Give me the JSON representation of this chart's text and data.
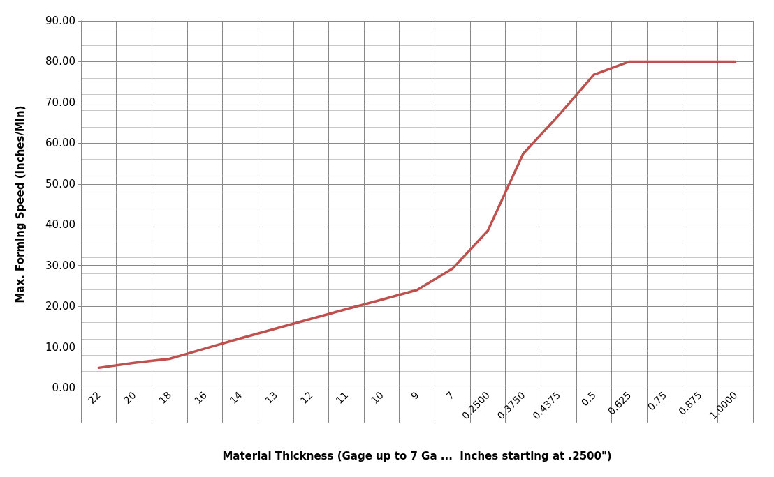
{
  "chart_data": {
    "type": "line",
    "xlabel": "Material Thickness (Gage up to 7 Ga ...  Inches starting at .2500\")",
    "ylabel": "Max. Forming Speed (Inches/Min)",
    "categories": [
      "22",
      "20",
      "18",
      "16",
      "14",
      "13",
      "12",
      "11",
      "10",
      "9",
      "7",
      "0.2500",
      "0.3750",
      "0.4375",
      "0.5",
      "0.625",
      "0.75",
      "0.875",
      "1.0000"
    ],
    "series": [
      {
        "color": "#c0504d",
        "values": [
          4.9,
          6.1,
          7.1,
          9.6,
          12.1,
          14.5,
          16.9,
          19.3,
          21.6,
          24.0,
          29.2,
          38.5,
          57.4,
          66.8,
          76.8,
          80.0,
          80.0,
          80.0,
          80.0
        ]
      }
    ],
    "ylim": [
      0,
      90
    ],
    "yticks": [
      {
        "value": 0,
        "label": "0.00"
      },
      {
        "value": 10,
        "label": "10.00"
      },
      {
        "value": 20,
        "label": "20.00"
      },
      {
        "value": 30,
        "label": "30.00"
      },
      {
        "value": 40,
        "label": "40.00"
      },
      {
        "value": 50,
        "label": "50.00"
      },
      {
        "value": 60,
        "label": "60.00"
      },
      {
        "value": 70,
        "label": "70.00"
      },
      {
        "value": 80,
        "label": "80.00"
      },
      {
        "value": 90,
        "label": "90.00"
      }
    ],
    "grid": true,
    "marker": "none",
    "line_style": "solid"
  }
}
